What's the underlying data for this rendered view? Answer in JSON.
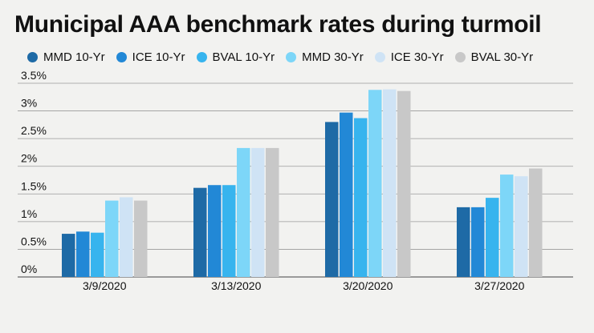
{
  "chart_data": {
    "type": "bar",
    "title": "Municipal AAA benchmark rates during turmoil",
    "categories": [
      "3/9/2020",
      "3/13/2020",
      "3/20/2020",
      "3/27/2020"
    ],
    "series": [
      {
        "name": "MMD 10-Yr",
        "color": "#1e6aa6",
        "values": [
          0.78,
          1.61,
          2.8,
          1.26
        ]
      },
      {
        "name": "ICE 10-Yr",
        "color": "#2288d6",
        "values": [
          0.82,
          1.66,
          2.97,
          1.26
        ]
      },
      {
        "name": "BVAL 10-Yr",
        "color": "#37b4ee",
        "values": [
          0.8,
          1.66,
          2.87,
          1.43
        ]
      },
      {
        "name": "MMD 30-Yr",
        "color": "#7dd6f8",
        "values": [
          1.38,
          2.33,
          3.38,
          1.85
        ]
      },
      {
        "name": "ICE 30-Yr",
        "color": "#cfe3f5",
        "values": [
          1.44,
          2.33,
          3.39,
          1.82
        ]
      },
      {
        "name": "BVAL 30-Yr",
        "color": "#c8c8c8",
        "values": [
          1.38,
          2.33,
          3.36,
          1.96
        ]
      }
    ],
    "y_ticks": [
      "0%",
      "0.5%",
      "1%",
      "1.5%",
      "2%",
      "2.5%",
      "3%",
      "3.5%"
    ],
    "ylim": [
      0,
      3.5
    ],
    "grid": true,
    "legend_position": "top"
  }
}
